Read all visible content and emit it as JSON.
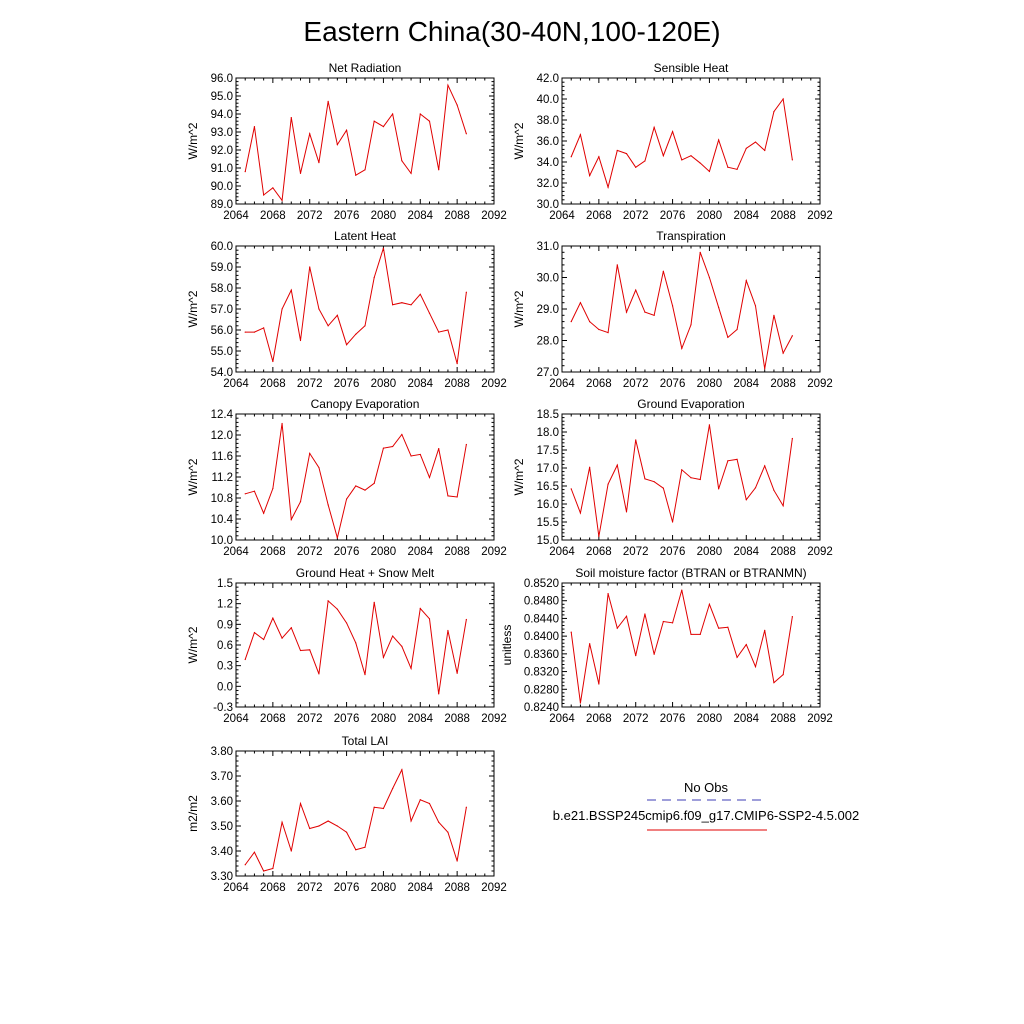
{
  "figure": {
    "title": "Eastern China(30-40N,100-120E)"
  },
  "legend": {
    "entries": [
      {
        "label": "No Obs",
        "color": "#3c3cb4",
        "dash": "dashed"
      },
      {
        "label": "b.e21.BSSP245cmip6.f09_g17.CMIP6-SSP2-4.5.002",
        "color": "#e00000",
        "dash": "solid"
      }
    ]
  },
  "colors": {
    "series": "#e00000",
    "axis": "#000000"
  },
  "chart_data": [
    {
      "type": "line",
      "title": "Net Radiation",
      "ylabel": "W/m^2",
      "xlim": [
        2064,
        2092
      ],
      "ylim": [
        89.0,
        96.0
      ],
      "xticks": [
        "2064",
        "2068",
        "2072",
        "2076",
        "2080",
        "2084",
        "2088",
        "2092"
      ],
      "yticks": [
        "89.0",
        "90.0",
        "91.0",
        "92.0",
        "93.0",
        "94.0",
        "95.0",
        "96.0"
      ],
      "x": [
        2065,
        2066,
        2067,
        2068,
        2069,
        2070,
        2071,
        2072,
        2073,
        2074,
        2075,
        2076,
        2077,
        2078,
        2079,
        2080,
        2081,
        2082,
        2083,
        2084,
        2085,
        2086,
        2087,
        2088,
        2089
      ],
      "y": [
        90.8,
        93.3,
        89.5,
        89.9,
        89.2,
        93.8,
        90.7,
        92.9,
        91.3,
        94.7,
        92.3,
        93.1,
        90.6,
        90.9,
        93.6,
        93.3,
        94.0,
        91.4,
        90.7,
        94.0,
        93.6,
        90.9,
        95.6,
        94.5,
        92.9
      ]
    },
    {
      "type": "line",
      "title": "Sensible Heat",
      "ylabel": "W/m^2",
      "xlim": [
        2064,
        2092
      ],
      "ylim": [
        30.0,
        42.0
      ],
      "xticks": [
        "2064",
        "2068",
        "2072",
        "2076",
        "2080",
        "2084",
        "2088",
        "2092"
      ],
      "yticks": [
        "30.0",
        "32.0",
        "34.0",
        "36.0",
        "38.0",
        "40.0",
        "42.0"
      ],
      "x": [
        2065,
        2066,
        2067,
        2068,
        2069,
        2070,
        2071,
        2072,
        2073,
        2074,
        2075,
        2076,
        2077,
        2078,
        2079,
        2080,
        2081,
        2082,
        2083,
        2084,
        2085,
        2086,
        2087,
        2088,
        2089
      ],
      "y": [
        34.5,
        36.6,
        32.7,
        34.5,
        31.6,
        35.1,
        34.8,
        33.5,
        34.1,
        37.3,
        34.6,
        36.9,
        34.2,
        34.6,
        33.9,
        33.1,
        36.1,
        33.5,
        33.3,
        35.3,
        35.9,
        35.1,
        38.8,
        40.0,
        34.2
      ]
    },
    {
      "type": "line",
      "title": "Latent Heat",
      "ylabel": "W/m^2",
      "xlim": [
        2064,
        2092
      ],
      "ylim": [
        54.0,
        60.0
      ],
      "xticks": [
        "2064",
        "2068",
        "2072",
        "2076",
        "2080",
        "2084",
        "2088",
        "2092"
      ],
      "yticks": [
        "54.0",
        "55.0",
        "56.0",
        "57.0",
        "58.0",
        "59.0",
        "60.0"
      ],
      "x": [
        2065,
        2066,
        2067,
        2068,
        2069,
        2070,
        2071,
        2072,
        2073,
        2074,
        2075,
        2076,
        2077,
        2078,
        2079,
        2080,
        2081,
        2082,
        2083,
        2084,
        2085,
        2086,
        2087,
        2088,
        2089
      ],
      "y": [
        55.9,
        55.9,
        56.1,
        54.5,
        57.0,
        57.9,
        55.5,
        59.0,
        57.0,
        56.2,
        56.7,
        55.3,
        55.8,
        56.2,
        58.5,
        59.9,
        57.2,
        57.3,
        57.2,
        57.7,
        56.8,
        55.9,
        56.0,
        54.4,
        57.8
      ]
    },
    {
      "type": "line",
      "title": "Transpiration",
      "ylabel": "W/m^2",
      "xlim": [
        2064,
        2092
      ],
      "ylim": [
        27.0,
        31.0
      ],
      "xticks": [
        "2064",
        "2068",
        "2072",
        "2076",
        "2080",
        "2084",
        "2088",
        "2092"
      ],
      "yticks": [
        "27.0",
        "28.0",
        "29.0",
        "30.0",
        "31.0"
      ],
      "x": [
        2065,
        2066,
        2067,
        2068,
        2069,
        2070,
        2071,
        2072,
        2073,
        2074,
        2075,
        2076,
        2077,
        2078,
        2079,
        2080,
        2081,
        2082,
        2083,
        2084,
        2085,
        2086,
        2087,
        2088,
        2089
      ],
      "y": [
        28.6,
        29.2,
        28.6,
        28.35,
        28.25,
        30.4,
        28.9,
        29.6,
        28.9,
        28.8,
        30.2,
        29.1,
        27.75,
        28.5,
        30.8,
        30.0,
        29.05,
        28.1,
        28.35,
        29.9,
        29.1,
        27.1,
        28.8,
        27.6,
        28.15
      ]
    },
    {
      "type": "line",
      "title": "Canopy Evaporation",
      "ylabel": "W/m^2",
      "xlim": [
        2064,
        2092
      ],
      "ylim": [
        10.0,
        12.4
      ],
      "xticks": [
        "2064",
        "2068",
        "2072",
        "2076",
        "2080",
        "2084",
        "2088",
        "2092"
      ],
      "yticks": [
        "10.0",
        "10.4",
        "10.8",
        "11.2",
        "11.6",
        "12.0",
        "12.4"
      ],
      "x": [
        2065,
        2066,
        2067,
        2068,
        2069,
        2070,
        2071,
        2072,
        2073,
        2074,
        2075,
        2076,
        2077,
        2078,
        2079,
        2080,
        2081,
        2082,
        2083,
        2084,
        2085,
        2086,
        2087,
        2088,
        2089
      ],
      "y": [
        10.88,
        10.93,
        10.51,
        10.98,
        12.22,
        10.39,
        10.73,
        11.65,
        11.38,
        10.67,
        10.04,
        10.78,
        11.03,
        10.95,
        11.08,
        11.75,
        11.78,
        12.01,
        11.6,
        11.63,
        11.19,
        11.74,
        10.84,
        10.82,
        11.82
      ]
    },
    {
      "type": "line",
      "title": "Ground Evaporation",
      "ylabel": "W/m^2",
      "xlim": [
        2064,
        2092
      ],
      "ylim": [
        15.0,
        18.5
      ],
      "xticks": [
        "2064",
        "2068",
        "2072",
        "2076",
        "2080",
        "2084",
        "2088",
        "2092"
      ],
      "yticks": [
        "15.0",
        "15.5",
        "16.0",
        "16.5",
        "17.0",
        "17.5",
        "18.0",
        "18.5"
      ],
      "x": [
        2065,
        2066,
        2067,
        2068,
        2069,
        2070,
        2071,
        2072,
        2073,
        2074,
        2075,
        2076,
        2077,
        2078,
        2079,
        2080,
        2081,
        2082,
        2083,
        2084,
        2085,
        2086,
        2087,
        2088,
        2089
      ],
      "y": [
        16.42,
        15.75,
        17.02,
        15.1,
        16.55,
        17.08,
        15.78,
        17.78,
        16.7,
        16.62,
        16.44,
        15.5,
        16.95,
        16.73,
        16.68,
        18.2,
        16.42,
        17.2,
        17.24,
        16.12,
        16.45,
        17.06,
        16.38,
        15.95,
        17.82
      ]
    },
    {
      "type": "line",
      "title": "Ground Heat + Snow Melt",
      "ylabel": "W/m^2",
      "xlim": [
        2064,
        2092
      ],
      "ylim": [
        -0.3,
        1.5
      ],
      "xticks": [
        "2064",
        "2068",
        "2072",
        "2076",
        "2080",
        "2084",
        "2088",
        "2092"
      ],
      "yticks": [
        "-0.3",
        "0.0",
        "0.3",
        "0.6",
        "0.9",
        "1.2",
        "1.5"
      ],
      "x": [
        2065,
        2066,
        2067,
        2068,
        2069,
        2070,
        2071,
        2072,
        2073,
        2074,
        2075,
        2076,
        2077,
        2078,
        2079,
        2080,
        2081,
        2082,
        2083,
        2084,
        2085,
        2086,
        2087,
        2088,
        2089
      ],
      "y": [
        0.39,
        0.78,
        0.68,
        0.99,
        0.7,
        0.85,
        0.52,
        0.53,
        0.18,
        1.24,
        1.12,
        0.92,
        0.63,
        0.17,
        1.22,
        0.42,
        0.73,
        0.58,
        0.26,
        1.13,
        0.98,
        -0.11,
        0.81,
        0.19,
        0.97
      ]
    },
    {
      "type": "line",
      "title": "Soil moisture factor (BTRAN or BTRANMN)",
      "ylabel": "unitless",
      "xlim": [
        2064,
        2092
      ],
      "ylim": [
        0.824,
        0.852
      ],
      "xticks": [
        "2064",
        "2068",
        "2072",
        "2076",
        "2080",
        "2084",
        "2088",
        "2092"
      ],
      "yticks": [
        "0.8240",
        "0.8280",
        "0.8320",
        "0.8360",
        "0.8400",
        "0.8440",
        "0.8480",
        "0.8520"
      ],
      "x": [
        2065,
        2066,
        2067,
        2068,
        2069,
        2070,
        2071,
        2072,
        2073,
        2074,
        2075,
        2076,
        2077,
        2078,
        2079,
        2080,
        2081,
        2082,
        2083,
        2084,
        2085,
        2086,
        2087,
        2088,
        2089
      ],
      "y": [
        0.8409,
        0.8249,
        0.8383,
        0.8292,
        0.8496,
        0.8418,
        0.8445,
        0.8356,
        0.845,
        0.8359,
        0.8433,
        0.843,
        0.8504,
        0.8404,
        0.8404,
        0.8472,
        0.8418,
        0.842,
        0.8352,
        0.8381,
        0.8331,
        0.8413,
        0.8295,
        0.8313,
        0.8444
      ]
    },
    {
      "type": "line",
      "title": "Total LAI",
      "ylabel": "m2/m2",
      "xlim": [
        2064,
        2092
      ],
      "ylim": [
        3.3,
        3.8
      ],
      "xticks": [
        "2064",
        "2068",
        "2072",
        "2076",
        "2080",
        "2084",
        "2088",
        "2092"
      ],
      "yticks": [
        "3.30",
        "3.40",
        "3.50",
        "3.60",
        "3.70",
        "3.80"
      ],
      "x": [
        2065,
        2066,
        2067,
        2068,
        2069,
        2070,
        2071,
        2072,
        2073,
        2074,
        2075,
        2076,
        2077,
        2078,
        2079,
        2080,
        2081,
        2082,
        2083,
        2084,
        2085,
        2086,
        2087,
        2088,
        2089
      ],
      "y": [
        3.345,
        3.395,
        3.32,
        3.33,
        3.515,
        3.4,
        3.59,
        3.49,
        3.5,
        3.52,
        3.5,
        3.475,
        3.405,
        3.415,
        3.575,
        3.57,
        3.65,
        3.725,
        3.52,
        3.605,
        3.59,
        3.515,
        3.475,
        3.36,
        3.575
      ]
    }
  ]
}
